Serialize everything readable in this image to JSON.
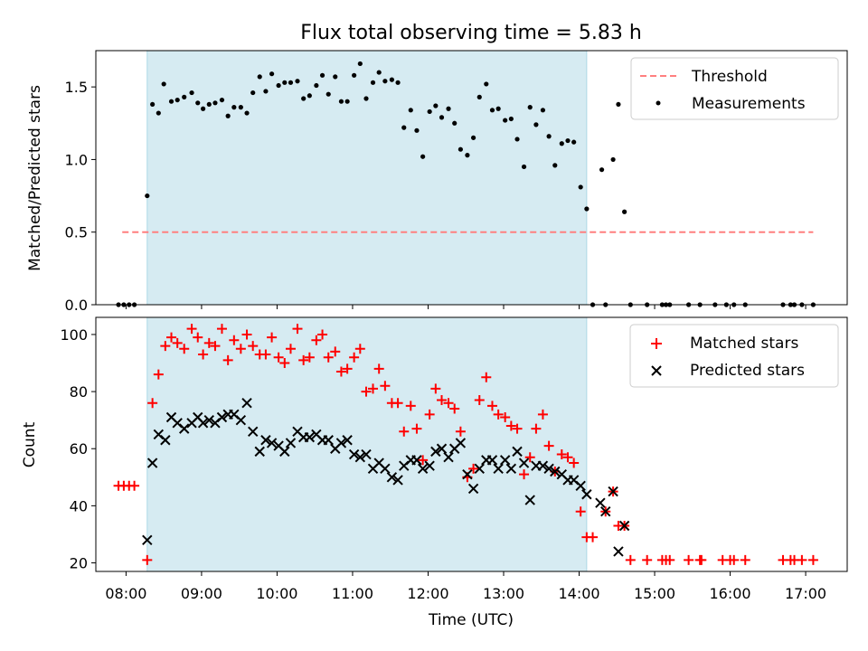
{
  "chart_data": {
    "type": "scatter",
    "title": "Flux total observing time = 5.83 h",
    "xlabel": "Time (UTC)",
    "xlim": [
      7.6,
      17.55
    ],
    "xticks": [
      8,
      9,
      10,
      11,
      12,
      13,
      14,
      15,
      16,
      17
    ],
    "xtick_labels": [
      "08:00",
      "09:00",
      "10:00",
      "11:00",
      "12:00",
      "13:00",
      "14:00",
      "15:00",
      "16:00",
      "17:00"
    ],
    "observing_window": [
      8.28,
      14.1
    ],
    "top_panel": {
      "ylabel": "Matched/Predicted stars",
      "ylim": [
        0,
        1.75
      ],
      "yticks": [
        0.0,
        0.5,
        1.0,
        1.5
      ],
      "ytick_labels": [
        "0.0",
        "0.5",
        "1.0",
        "1.5"
      ],
      "legend": [
        "Threshold",
        "Measurements"
      ],
      "threshold": {
        "value": 0.5,
        "x_range": [
          7.95,
          17.1
        ],
        "color": "#ff7f7f"
      },
      "measurements": [
        [
          7.9,
          0
        ],
        [
          7.97,
          0
        ],
        [
          8.04,
          0
        ],
        [
          8.11,
          0
        ],
        [
          8.28,
          0.75
        ],
        [
          8.35,
          1.38
        ],
        [
          8.43,
          1.32
        ],
        [
          8.5,
          1.52
        ],
        [
          8.6,
          1.4
        ],
        [
          8.68,
          1.41
        ],
        [
          8.77,
          1.43
        ],
        [
          8.87,
          1.46
        ],
        [
          8.95,
          1.39
        ],
        [
          9.02,
          1.35
        ],
        [
          9.1,
          1.38
        ],
        [
          9.18,
          1.39
        ],
        [
          9.27,
          1.41
        ],
        [
          9.35,
          1.3
        ],
        [
          9.43,
          1.36
        ],
        [
          9.52,
          1.36
        ],
        [
          9.6,
          1.32
        ],
        [
          9.68,
          1.46
        ],
        [
          9.77,
          1.57
        ],
        [
          9.85,
          1.47
        ],
        [
          9.93,
          1.59
        ],
        [
          10.02,
          1.51
        ],
        [
          10.1,
          1.53
        ],
        [
          10.18,
          1.53
        ],
        [
          10.27,
          1.54
        ],
        [
          10.35,
          1.42
        ],
        [
          10.43,
          1.44
        ],
        [
          10.52,
          1.51
        ],
        [
          10.6,
          1.58
        ],
        [
          10.68,
          1.45
        ],
        [
          10.77,
          1.57
        ],
        [
          10.85,
          1.4
        ],
        [
          10.93,
          1.4
        ],
        [
          11.02,
          1.58
        ],
        [
          11.1,
          1.66
        ],
        [
          11.18,
          1.42
        ],
        [
          11.27,
          1.53
        ],
        [
          11.35,
          1.6
        ],
        [
          11.43,
          1.54
        ],
        [
          11.52,
          1.55
        ],
        [
          11.6,
          1.53
        ],
        [
          11.68,
          1.22
        ],
        [
          11.77,
          1.34
        ],
        [
          11.85,
          1.2
        ],
        [
          11.93,
          1.02
        ],
        [
          12.02,
          1.33
        ],
        [
          12.1,
          1.37
        ],
        [
          12.18,
          1.29
        ],
        [
          12.27,
          1.35
        ],
        [
          12.35,
          1.25
        ],
        [
          12.43,
          1.07
        ],
        [
          12.52,
          1.03
        ],
        [
          12.6,
          1.15
        ],
        [
          12.68,
          1.43
        ],
        [
          12.77,
          1.52
        ],
        [
          12.85,
          1.34
        ],
        [
          12.93,
          1.35
        ],
        [
          13.02,
          1.27
        ],
        [
          13.1,
          1.28
        ],
        [
          13.18,
          1.14
        ],
        [
          13.27,
          0.95
        ],
        [
          13.35,
          1.36
        ],
        [
          13.43,
          1.24
        ],
        [
          13.52,
          1.34
        ],
        [
          13.6,
          1.16
        ],
        [
          13.68,
          0.96
        ],
        [
          13.77,
          1.11
        ],
        [
          13.85,
          1.13
        ],
        [
          13.93,
          1.12
        ],
        [
          14.02,
          0.81
        ],
        [
          14.1,
          0.66
        ],
        [
          14.18,
          0
        ],
        [
          14.3,
          0.93
        ],
        [
          14.35,
          0
        ],
        [
          14.45,
          1.0
        ],
        [
          14.52,
          1.38
        ],
        [
          14.6,
          0.64
        ],
        [
          14.68,
          0
        ],
        [
          14.9,
          0
        ],
        [
          15.1,
          0
        ],
        [
          15.15,
          0
        ],
        [
          15.2,
          0
        ],
        [
          15.45,
          0
        ],
        [
          15.6,
          0
        ],
        [
          15.8,
          0
        ],
        [
          15.95,
          0
        ],
        [
          16.05,
          0
        ],
        [
          16.2,
          0
        ],
        [
          16.7,
          0
        ],
        [
          16.8,
          0
        ],
        [
          16.85,
          0
        ],
        [
          16.95,
          0
        ],
        [
          17.1,
          0
        ]
      ]
    },
    "bottom_panel": {
      "ylabel": "Count",
      "ylim": [
        17,
        106
      ],
      "yticks": [
        20,
        40,
        60,
        80,
        100
      ],
      "ytick_labels": [
        "20",
        "40",
        "60",
        "80",
        "100"
      ],
      "legend": [
        "Matched stars",
        "Predicted stars"
      ],
      "matched_stars": [
        [
          7.9,
          47
        ],
        [
          7.97,
          47
        ],
        [
          8.04,
          47
        ],
        [
          8.11,
          47
        ],
        [
          8.28,
          21
        ],
        [
          8.35,
          76
        ],
        [
          8.43,
          86
        ],
        [
          8.52,
          96
        ],
        [
          8.6,
          99
        ],
        [
          8.68,
          97
        ],
        [
          8.77,
          95
        ],
        [
          8.87,
          102
        ],
        [
          8.95,
          99
        ],
        [
          9.02,
          93
        ],
        [
          9.1,
          97
        ],
        [
          9.18,
          96
        ],
        [
          9.27,
          102
        ],
        [
          9.35,
          91
        ],
        [
          9.43,
          98
        ],
        [
          9.52,
          95
        ],
        [
          9.6,
          100
        ],
        [
          9.68,
          96
        ],
        [
          9.77,
          93
        ],
        [
          9.85,
          93
        ],
        [
          9.93,
          99
        ],
        [
          10.02,
          92
        ],
        [
          10.1,
          90
        ],
        [
          10.18,
          95
        ],
        [
          10.27,
          102
        ],
        [
          10.35,
          91
        ],
        [
          10.43,
          92
        ],
        [
          10.52,
          98
        ],
        [
          10.6,
          100
        ],
        [
          10.68,
          92
        ],
        [
          10.77,
          94
        ],
        [
          10.85,
          87
        ],
        [
          10.93,
          88
        ],
        [
          11.02,
          92
        ],
        [
          11.1,
          95
        ],
        [
          11.18,
          80
        ],
        [
          11.27,
          81
        ],
        [
          11.35,
          88
        ],
        [
          11.43,
          82
        ],
        [
          11.52,
          76
        ],
        [
          11.6,
          76
        ],
        [
          11.68,
          66
        ],
        [
          11.77,
          75
        ],
        [
          11.85,
          67
        ],
        [
          11.93,
          56
        ],
        [
          12.02,
          72
        ],
        [
          12.1,
          81
        ],
        [
          12.18,
          77
        ],
        [
          12.27,
          76
        ],
        [
          12.35,
          74
        ],
        [
          12.43,
          66
        ],
        [
          12.52,
          50
        ],
        [
          12.6,
          53
        ],
        [
          12.68,
          77
        ],
        [
          12.77,
          85
        ],
        [
          12.85,
          75
        ],
        [
          12.93,
          72
        ],
        [
          13.02,
          71
        ],
        [
          13.1,
          68
        ],
        [
          13.18,
          67
        ],
        [
          13.27,
          51
        ],
        [
          13.35,
          57
        ],
        [
          13.43,
          67
        ],
        [
          13.52,
          72
        ],
        [
          13.6,
          61
        ],
        [
          13.68,
          52
        ],
        [
          13.77,
          58
        ],
        [
          13.85,
          57
        ],
        [
          13.93,
          55
        ],
        [
          14.02,
          38
        ],
        [
          14.1,
          29
        ],
        [
          14.18,
          29
        ],
        [
          14.35,
          38
        ],
        [
          14.45,
          45
        ],
        [
          14.52,
          33
        ],
        [
          14.6,
          33
        ],
        [
          14.68,
          21
        ],
        [
          14.9,
          21
        ],
        [
          15.1,
          21
        ],
        [
          15.15,
          21
        ],
        [
          15.2,
          21
        ],
        [
          15.45,
          21
        ],
        [
          15.6,
          21
        ],
        [
          15.62,
          21
        ],
        [
          15.9,
          21
        ],
        [
          16.0,
          21
        ],
        [
          16.05,
          21
        ],
        [
          16.2,
          21
        ],
        [
          16.7,
          21
        ],
        [
          16.8,
          21
        ],
        [
          16.85,
          21
        ],
        [
          16.95,
          21
        ],
        [
          17.1,
          21
        ]
      ],
      "predicted_stars": [
        [
          8.28,
          28
        ],
        [
          8.35,
          55
        ],
        [
          8.43,
          65
        ],
        [
          8.52,
          63
        ],
        [
          8.6,
          71
        ],
        [
          8.68,
          69
        ],
        [
          8.77,
          67
        ],
        [
          8.87,
          69
        ],
        [
          8.95,
          71
        ],
        [
          9.02,
          69
        ],
        [
          9.1,
          70
        ],
        [
          9.18,
          69
        ],
        [
          9.27,
          71
        ],
        [
          9.35,
          72
        ],
        [
          9.43,
          72
        ],
        [
          9.52,
          70
        ],
        [
          9.6,
          76
        ],
        [
          9.68,
          66
        ],
        [
          9.77,
          59
        ],
        [
          9.85,
          63
        ],
        [
          9.93,
          62
        ],
        [
          10.02,
          61
        ],
        [
          10.1,
          59
        ],
        [
          10.18,
          62
        ],
        [
          10.27,
          66
        ],
        [
          10.35,
          64
        ],
        [
          10.43,
          64
        ],
        [
          10.52,
          65
        ],
        [
          10.6,
          63
        ],
        [
          10.68,
          63
        ],
        [
          10.77,
          60
        ],
        [
          10.85,
          62
        ],
        [
          10.93,
          63
        ],
        [
          11.02,
          58
        ],
        [
          11.1,
          57
        ],
        [
          11.18,
          58
        ],
        [
          11.27,
          53
        ],
        [
          11.35,
          55
        ],
        [
          11.43,
          53
        ],
        [
          11.52,
          50
        ],
        [
          11.6,
          49
        ],
        [
          11.68,
          54
        ],
        [
          11.77,
          56
        ],
        [
          11.85,
          56
        ],
        [
          11.93,
          53
        ],
        [
          12.02,
          54
        ],
        [
          12.1,
          59
        ],
        [
          12.18,
          60
        ],
        [
          12.27,
          57
        ],
        [
          12.35,
          60
        ],
        [
          12.43,
          62
        ],
        [
          12.52,
          51
        ],
        [
          12.6,
          46
        ],
        [
          12.68,
          53
        ],
        [
          12.77,
          56
        ],
        [
          12.85,
          56
        ],
        [
          12.93,
          53
        ],
        [
          13.02,
          56
        ],
        [
          13.1,
          53
        ],
        [
          13.18,
          59
        ],
        [
          13.27,
          55
        ],
        [
          13.35,
          42
        ],
        [
          13.43,
          54
        ],
        [
          13.52,
          54
        ],
        [
          13.6,
          53
        ],
        [
          13.68,
          52
        ],
        [
          13.77,
          51
        ],
        [
          13.85,
          49
        ],
        [
          13.93,
          49
        ],
        [
          14.02,
          47
        ],
        [
          14.1,
          44
        ],
        [
          14.28,
          41
        ],
        [
          14.35,
          38
        ],
        [
          14.45,
          45
        ],
        [
          14.52,
          24
        ],
        [
          14.6,
          33
        ]
      ]
    }
  }
}
